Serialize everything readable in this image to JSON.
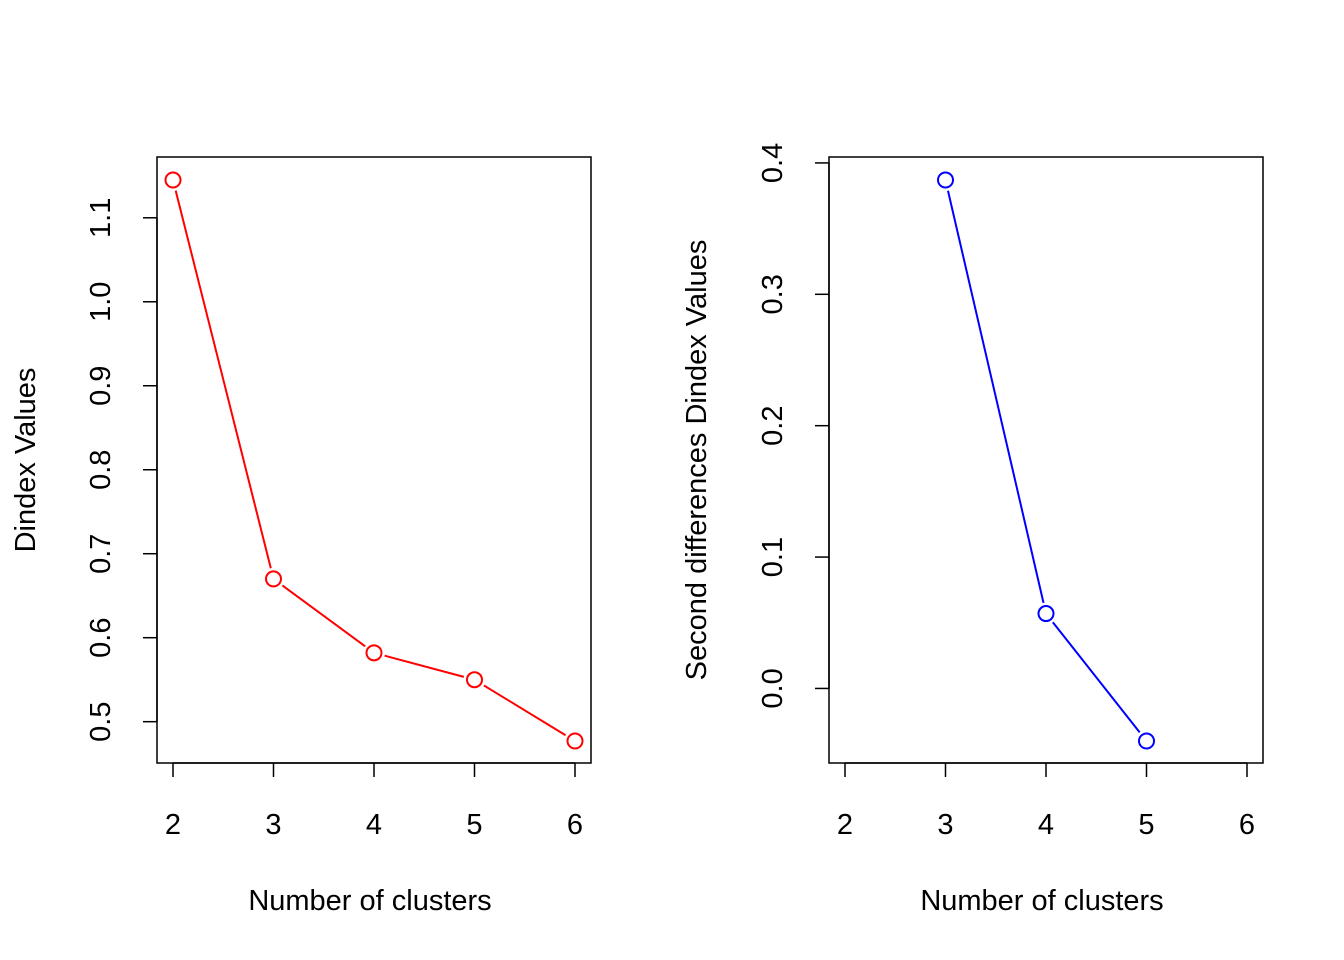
{
  "chart_data": [
    {
      "type": "line",
      "title": "",
      "xlabel": "Number of clusters",
      "ylabel": "Dindex Values",
      "x": [
        2,
        3,
        4,
        5,
        6
      ],
      "series": [
        {
          "values": [
            1.145,
            0.67,
            0.582,
            0.55,
            0.477
          ],
          "color": "#ff0000",
          "marker": "open-circle"
        }
      ],
      "xlim": [
        2,
        6
      ],
      "ylim": [
        0.477,
        1.145
      ],
      "xticks": [
        "2",
        "3",
        "4",
        "5",
        "6"
      ],
      "yticks": [
        "0.5",
        "0.6",
        "0.7",
        "0.8",
        "0.9",
        "1.0",
        "1.1"
      ],
      "ytick_values": [
        0.5,
        0.6,
        0.7,
        0.8,
        0.9,
        1.0,
        1.1
      ],
      "grid": false,
      "legend": "none"
    },
    {
      "type": "line",
      "title": "",
      "xlabel": "Number of clusters",
      "ylabel": "Second differences Dindex Values",
      "x": [
        3,
        4,
        5
      ],
      "x_axis_values": [
        2,
        3,
        4,
        5,
        6
      ],
      "series": [
        {
          "values": [
            0.387,
            0.057,
            -0.04
          ],
          "color": "#0000ff",
          "marker": "open-circle"
        }
      ],
      "xlim": [
        2,
        6
      ],
      "ylim": [
        -0.04,
        0.387
      ],
      "xticks": [
        "2",
        "3",
        "4",
        "5",
        "6"
      ],
      "yticks": [
        "0.0",
        "0.1",
        "0.2",
        "0.3",
        "0.4"
      ],
      "ytick_values": [
        0.0,
        0.1,
        0.2,
        0.3,
        0.4
      ],
      "grid": false,
      "legend": "none"
    }
  ]
}
